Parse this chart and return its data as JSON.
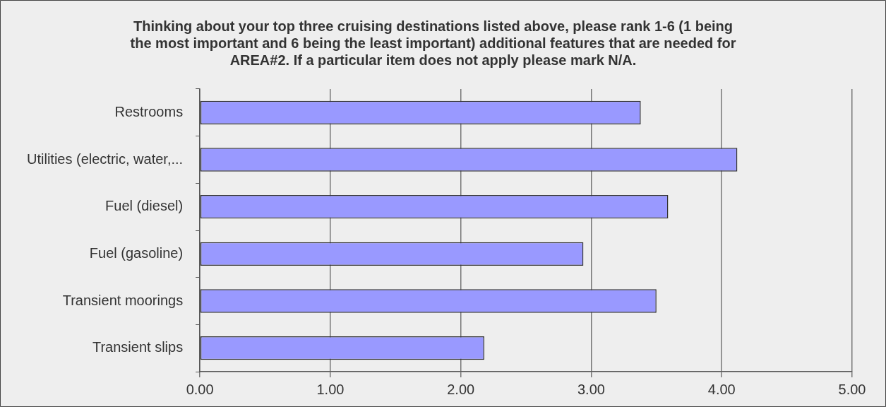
{
  "chart_data": {
    "type": "bar",
    "orientation": "horizontal",
    "title": "Thinking about your top three cruising destinations listed above, please rank 1-6 (1 being the most important and 6 being the least important) additional features that are needed for AREA#2. If a particular item does not apply please mark N/A.",
    "categories": [
      "Restrooms",
      "Utilities (electric, water,...",
      "Fuel (diesel)",
      "Fuel (gasoline)",
      "Transient moorings",
      "Transient slips"
    ],
    "values": [
      3.38,
      4.12,
      3.59,
      2.94,
      3.5,
      2.18
    ],
    "color": "#9999ff",
    "xlim": [
      0,
      5
    ],
    "xticks": [
      {
        "value": 0,
        "label": "0.00"
      },
      {
        "value": 1,
        "label": "1.00"
      },
      {
        "value": 2,
        "label": "2.00"
      },
      {
        "value": 3,
        "label": "3.00"
      },
      {
        "value": 4,
        "label": "4.00"
      },
      {
        "value": 5,
        "label": "5.00"
      }
    ],
    "grid": "x",
    "legend": false
  }
}
